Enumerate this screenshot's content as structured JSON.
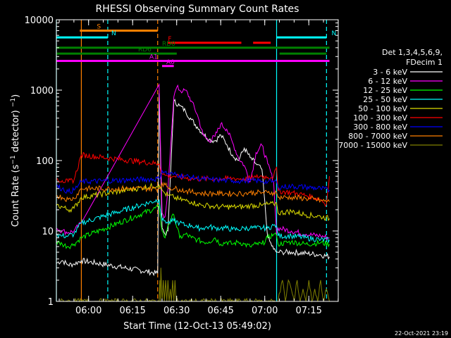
{
  "chart_data": {
    "type": "line",
    "title": "RHESSI Observing Summary Count Rates",
    "xlabel": "Start Time (12-Oct-13 05:49:02)",
    "ylabel": "Count Rate (s⁻¹ detector⁻¹)",
    "y_scale": "log",
    "ylim": [
      1,
      10000
    ],
    "xlim_minutes_after_0549": [
      0,
      96
    ],
    "x_ticks": [
      "06:00",
      "06:15",
      "06:30",
      "06:45",
      "07:00",
      "07:15"
    ],
    "y_ticks": [
      "1",
      "10",
      "100",
      "1000",
      "10000"
    ],
    "legend_title": [
      "Det 1,3,4,5,6,9,",
      "FDecim 1"
    ],
    "legend_position": "right",
    "series": [
      {
        "name": "3 - 6 keV",
        "color": "#ffffff",
        "x": [
          0,
          2,
          4,
          6,
          8.5,
          34.5,
          35,
          36,
          37,
          38,
          40,
          42,
          44,
          46,
          48,
          50,
          52,
          54,
          56,
          58,
          60,
          62,
          64,
          66,
          68,
          70,
          72,
          74,
          75,
          75.5,
          77,
          80,
          85,
          90,
          93
        ],
        "y": [
          3.5,
          3.8,
          3.3,
          3.4,
          3.8,
          2.5,
          900,
          11,
          9,
          10,
          700,
          600,
          500,
          380,
          300,
          240,
          200,
          190,
          230,
          170,
          120,
          100,
          150,
          110,
          90,
          75,
          8,
          5.5,
          5,
          5,
          5,
          5,
          4.8,
          4.6,
          4.3
        ]
      },
      {
        "name": "6 - 12 keV",
        "color": "#ff00ff",
        "x": [
          0,
          2,
          4,
          6,
          8.5,
          35,
          36,
          37,
          38,
          40,
          41,
          43,
          44,
          46,
          48,
          50,
          52,
          54,
          56,
          58,
          60,
          62,
          64,
          66,
          68,
          70,
          72,
          74,
          75,
          75.5,
          80,
          85,
          90,
          93
        ],
        "y": [
          11,
          10,
          9.5,
          10,
          13,
          1200,
          18,
          16,
          40,
          800,
          1100,
          950,
          1000,
          700,
          450,
          230,
          190,
          220,
          330,
          280,
          180,
          110,
          85,
          50,
          130,
          165,
          90,
          50,
          9,
          11,
          10,
          9,
          8.5,
          8
        ]
      },
      {
        "name": "12 - 25 keV",
        "color": "#00ff00",
        "x": [
          0,
          2,
          4,
          6,
          8.5,
          35,
          36,
          37,
          38,
          40,
          42,
          44,
          46,
          48,
          50,
          52,
          54,
          56,
          58,
          60,
          62,
          64,
          66,
          68,
          70,
          72,
          74,
          75,
          75.5,
          80,
          85,
          90,
          93
        ],
        "y": [
          7,
          6.5,
          6,
          6.5,
          8,
          22,
          10,
          8,
          12,
          17,
          8,
          9,
          8,
          7.5,
          7,
          7,
          8,
          6.5,
          7,
          6.5,
          7,
          6.5,
          6,
          6.5,
          6.5,
          8,
          9,
          8.5,
          6.5,
          7,
          6.5,
          6.8,
          6.5
        ]
      },
      {
        "name": "25 - 50 keV",
        "color": "#00ffff",
        "x": [
          0,
          2,
          4,
          6,
          8.5,
          35,
          36,
          37,
          38,
          40,
          42,
          44,
          46,
          48,
          50,
          52,
          54,
          56,
          58,
          60,
          62,
          64,
          66,
          68,
          70,
          72,
          74,
          75,
          75.5,
          80,
          85,
          90,
          93
        ],
        "y": [
          9,
          8.5,
          8.5,
          9,
          13,
          28,
          14,
          14,
          13,
          14,
          13,
          12,
          12,
          11,
          11,
          11.5,
          11,
          11,
          11,
          10.5,
          10.5,
          11,
          11,
          11,
          11,
          11,
          12,
          12,
          8.5,
          8.5,
          8,
          7.5,
          7.5
        ]
      },
      {
        "name": "50 - 100 keV",
        "color": "#dddd00",
        "x": [
          0,
          2,
          4,
          6,
          8.5,
          35,
          36,
          37,
          38,
          40,
          42,
          44,
          46,
          48,
          50,
          52,
          54,
          56,
          58,
          60,
          62,
          64,
          66,
          68,
          70,
          72,
          74,
          75,
          75.5,
          80,
          85,
          90,
          93
        ],
        "y": [
          23,
          22,
          20,
          21,
          30,
          45,
          38,
          34,
          32,
          30,
          28,
          27,
          26,
          24,
          23,
          23,
          22,
          22,
          22,
          22,
          22,
          22,
          23,
          23,
          23,
          24,
          24,
          25,
          18,
          19,
          17,
          16,
          15
        ]
      },
      {
        "name": "100 - 300 keV",
        "color": "#ff0000",
        "x": [
          0,
          2,
          4,
          6,
          8.5,
          35,
          36,
          37,
          38,
          40,
          42,
          44,
          46,
          48,
          50,
          52,
          54,
          56,
          58,
          60,
          62,
          64,
          66,
          68,
          70,
          72,
          74,
          75,
          75.5,
          80,
          85,
          90,
          92,
          93
        ],
        "y": [
          55,
          52,
          50,
          53,
          120,
          90,
          65,
          62,
          60,
          60,
          58,
          57,
          55,
          55,
          55,
          55,
          55,
          55,
          55,
          56,
          55,
          55,
          56,
          58,
          60,
          58,
          60,
          80,
          37,
          35,
          32,
          28,
          24,
          60
        ]
      },
      {
        "name": "300 - 800 keV",
        "color": "#0000ff",
        "x": [
          0,
          2,
          4,
          6,
          8.5,
          35,
          36,
          37,
          38,
          40,
          42,
          44,
          46,
          48,
          50,
          52,
          54,
          56,
          58,
          60,
          62,
          64,
          66,
          68,
          70,
          72,
          74,
          75,
          75.5,
          80,
          85,
          90,
          93
        ],
        "y": [
          43,
          40,
          36,
          38,
          50,
          55,
          72,
          68,
          65,
          64,
          62,
          60,
          58,
          56,
          55,
          54,
          53,
          53,
          52,
          52,
          51,
          52,
          52,
          52,
          51,
          50,
          50,
          50,
          42,
          43,
          42,
          40,
          38
        ]
      },
      {
        "name": "800 - 7000 keV",
        "color": "#ff8000",
        "x": [
          0,
          2,
          4,
          6,
          8.5,
          35,
          36,
          37,
          38,
          40,
          42,
          44,
          46,
          48,
          50,
          52,
          54,
          56,
          58,
          60,
          62,
          64,
          66,
          68,
          70,
          72,
          74,
          75,
          75.5,
          80,
          85,
          90,
          93
        ],
        "y": [
          32,
          30,
          28,
          29,
          40,
          40,
          48,
          45,
          42,
          40,
          39,
          37,
          36,
          35,
          34,
          34,
          34,
          34,
          34,
          34,
          34,
          34,
          35,
          35,
          35,
          35,
          35,
          35,
          30,
          30,
          29,
          27,
          26
        ]
      },
      {
        "name": "7000 - 15000 keV",
        "color": "#808000",
        "x": [
          0,
          8.5,
          35,
          35.2,
          35.4,
          35.6,
          36,
          36.4,
          36.8,
          37.2,
          37.6,
          38,
          38.4,
          38.8,
          39.2,
          39.6,
          40,
          40.4,
          40.8,
          75.5,
          77,
          78,
          79,
          80,
          81,
          82,
          83,
          84,
          85,
          86,
          87,
          88,
          89,
          90,
          91,
          92,
          93
        ],
        "y": [
          1,
          1,
          1,
          2,
          1,
          3,
          1,
          2,
          1,
          2,
          1,
          2,
          1,
          1.5,
          1,
          2,
          1,
          2,
          1,
          1,
          2,
          1,
          2,
          1.5,
          1,
          2,
          1,
          1.5,
          1,
          2,
          1,
          1.5,
          1,
          2,
          1,
          1.5,
          1
        ]
      }
    ],
    "flags": [
      {
        "label": "S",
        "color": "#ff8000",
        "level": 7000,
        "start": 8,
        "end": 34.5
      },
      {
        "label": "N",
        "color": "#00ffff",
        "level": 5600,
        "start": 0,
        "end": 17.5
      },
      {
        "label": "N",
        "color": "#00ffff",
        "level": 5600,
        "start": 75,
        "end": 92
      },
      {
        "label": "F",
        "color": "#ff0000",
        "level": 4700,
        "start": 38,
        "end": 63
      },
      {
        "label": "",
        "color": "#ff0000",
        "level": 4700,
        "start": 67,
        "end": 73
      },
      {
        "label": "RD0",
        "color": "#008000",
        "level": 4000,
        "start": 0,
        "end": 93
      },
      {
        "label": "RD6",
        "color": "#008000",
        "level": 3300,
        "start": 0,
        "end": 41
      },
      {
        "label": "",
        "color": "#008000",
        "level": 3300,
        "start": 76,
        "end": 92
      },
      {
        "label": "A1",
        "color": "#ff00ff",
        "level": 2600,
        "start": 0,
        "end": 93
      },
      {
        "label": "A0",
        "color": "#ff00ff",
        "level": 2200,
        "start": 36,
        "end": 40
      }
    ],
    "vertical_markers": [
      {
        "x": 0,
        "color": "#00ffff",
        "style": "solid"
      },
      {
        "x": 8.5,
        "color": "#ff8000",
        "style": "solid"
      },
      {
        "x": 17.5,
        "color": "#00ffff",
        "style": "dashed"
      },
      {
        "x": 34.5,
        "color": "#ff8000",
        "style": "dashed"
      },
      {
        "x": 75,
        "color": "#00ffff",
        "style": "solid"
      },
      {
        "x": 92,
        "color": "#00ffff",
        "style": "dashed"
      }
    ]
  },
  "footer_timestamp": "22-Oct-2021 23:19"
}
